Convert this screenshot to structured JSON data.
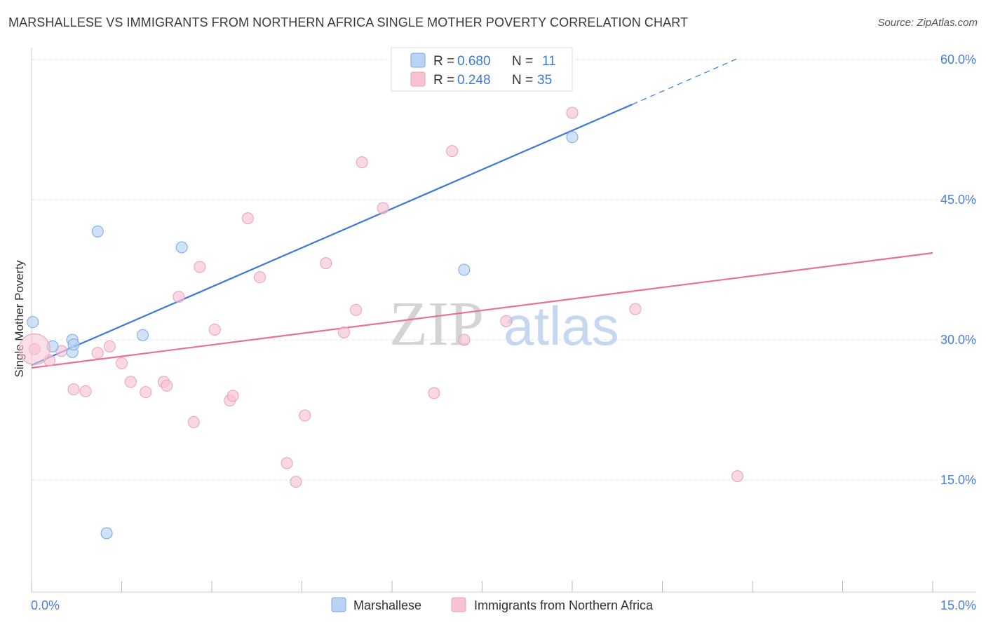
{
  "title": "MARSHALLESE VS IMMIGRANTS FROM NORTHERN AFRICA SINGLE MOTHER POVERTY CORRELATION CHART",
  "source": "Source: ZipAtlas.com",
  "watermark": {
    "zip": "ZIP",
    "atlas": "atlas"
  },
  "colors": {
    "blue": "#3c78d8",
    "blue_fill": "#b9d3f5",
    "pink": "#e8709a",
    "pink_fill": "#f7c3d4",
    "tick": "#4a7fd4"
  },
  "legend": {
    "r_label": "R =",
    "n_label": "N =",
    "rows": [
      {
        "r": "0.680",
        "n": "11"
      },
      {
        "r": "0.248",
        "n": "35"
      }
    ]
  },
  "chart_data": {
    "type": "scatter",
    "title": "MARSHALLESE VS IMMIGRANTS FROM NORTHERN AFRICA SINGLE MOTHER POVERTY CORRELATION CHART",
    "xlabel": "",
    "ylabel": "Single Mother Poverty",
    "xlim": [
      0,
      15
    ],
    "ylim": [
      3,
      61.5
    ],
    "x_tick_labels": [
      "0.0%",
      "15.0%"
    ],
    "y_ticks": [
      15,
      30,
      45,
      60
    ],
    "y_tick_labels": [
      "15.0%",
      "30.0%",
      "45.0%",
      "60.0%"
    ],
    "series": [
      {
        "name": "Marshallese",
        "points": [
          [
            0.02,
            31.9
          ],
          [
            0.35,
            29.3
          ],
          [
            0.68,
            30.0
          ],
          [
            0.68,
            28.7
          ],
          [
            1.1,
            41.6
          ],
          [
            1.25,
            9.3
          ],
          [
            1.85,
            30.5
          ],
          [
            2.5,
            39.9
          ],
          [
            7.2,
            37.5
          ],
          [
            9.0,
            51.7
          ],
          [
            0.7,
            29.5
          ]
        ],
        "trend": {
          "x0": 0.0,
          "y0": 27.3,
          "x1": 10.0,
          "y1": 55.2,
          "dash_x1": 11.75,
          "dash_y1": 60.1
        }
      },
      {
        "name": "Immigrants from Northern Africa",
        "points": [
          [
            0.05,
            29.0
          ],
          [
            0.3,
            27.8
          ],
          [
            0.5,
            28.8
          ],
          [
            0.7,
            24.7
          ],
          [
            0.9,
            24.5
          ],
          [
            1.1,
            28.6
          ],
          [
            1.3,
            29.3
          ],
          [
            1.5,
            27.5
          ],
          [
            1.65,
            25.5
          ],
          [
            1.9,
            24.4
          ],
          [
            2.2,
            25.5
          ],
          [
            2.25,
            25.1
          ],
          [
            2.45,
            34.6
          ],
          [
            2.7,
            21.2
          ],
          [
            2.8,
            37.8
          ],
          [
            3.05,
            31.1
          ],
          [
            3.3,
            23.5
          ],
          [
            3.35,
            24.0
          ],
          [
            3.6,
            43.0
          ],
          [
            3.8,
            36.7
          ],
          [
            4.25,
            16.8
          ],
          [
            4.4,
            14.8
          ],
          [
            4.55,
            21.9
          ],
          [
            4.9,
            38.2
          ],
          [
            5.2,
            30.8
          ],
          [
            5.4,
            33.2
          ],
          [
            5.5,
            49.0
          ],
          [
            5.85,
            44.1
          ],
          [
            6.7,
            24.3
          ],
          [
            7.0,
            50.2
          ],
          [
            7.2,
            30.0
          ],
          [
            7.9,
            32.0
          ],
          [
            9.0,
            54.3
          ],
          [
            10.05,
            33.3
          ],
          [
            11.75,
            15.4
          ]
        ],
        "trend": {
          "x0": 0.0,
          "y0": 27.0,
          "x1": 15.0,
          "y1": 39.3
        }
      }
    ]
  },
  "bottom_legend": [
    "Marshallese",
    "Immigrants from Northern Africa"
  ]
}
